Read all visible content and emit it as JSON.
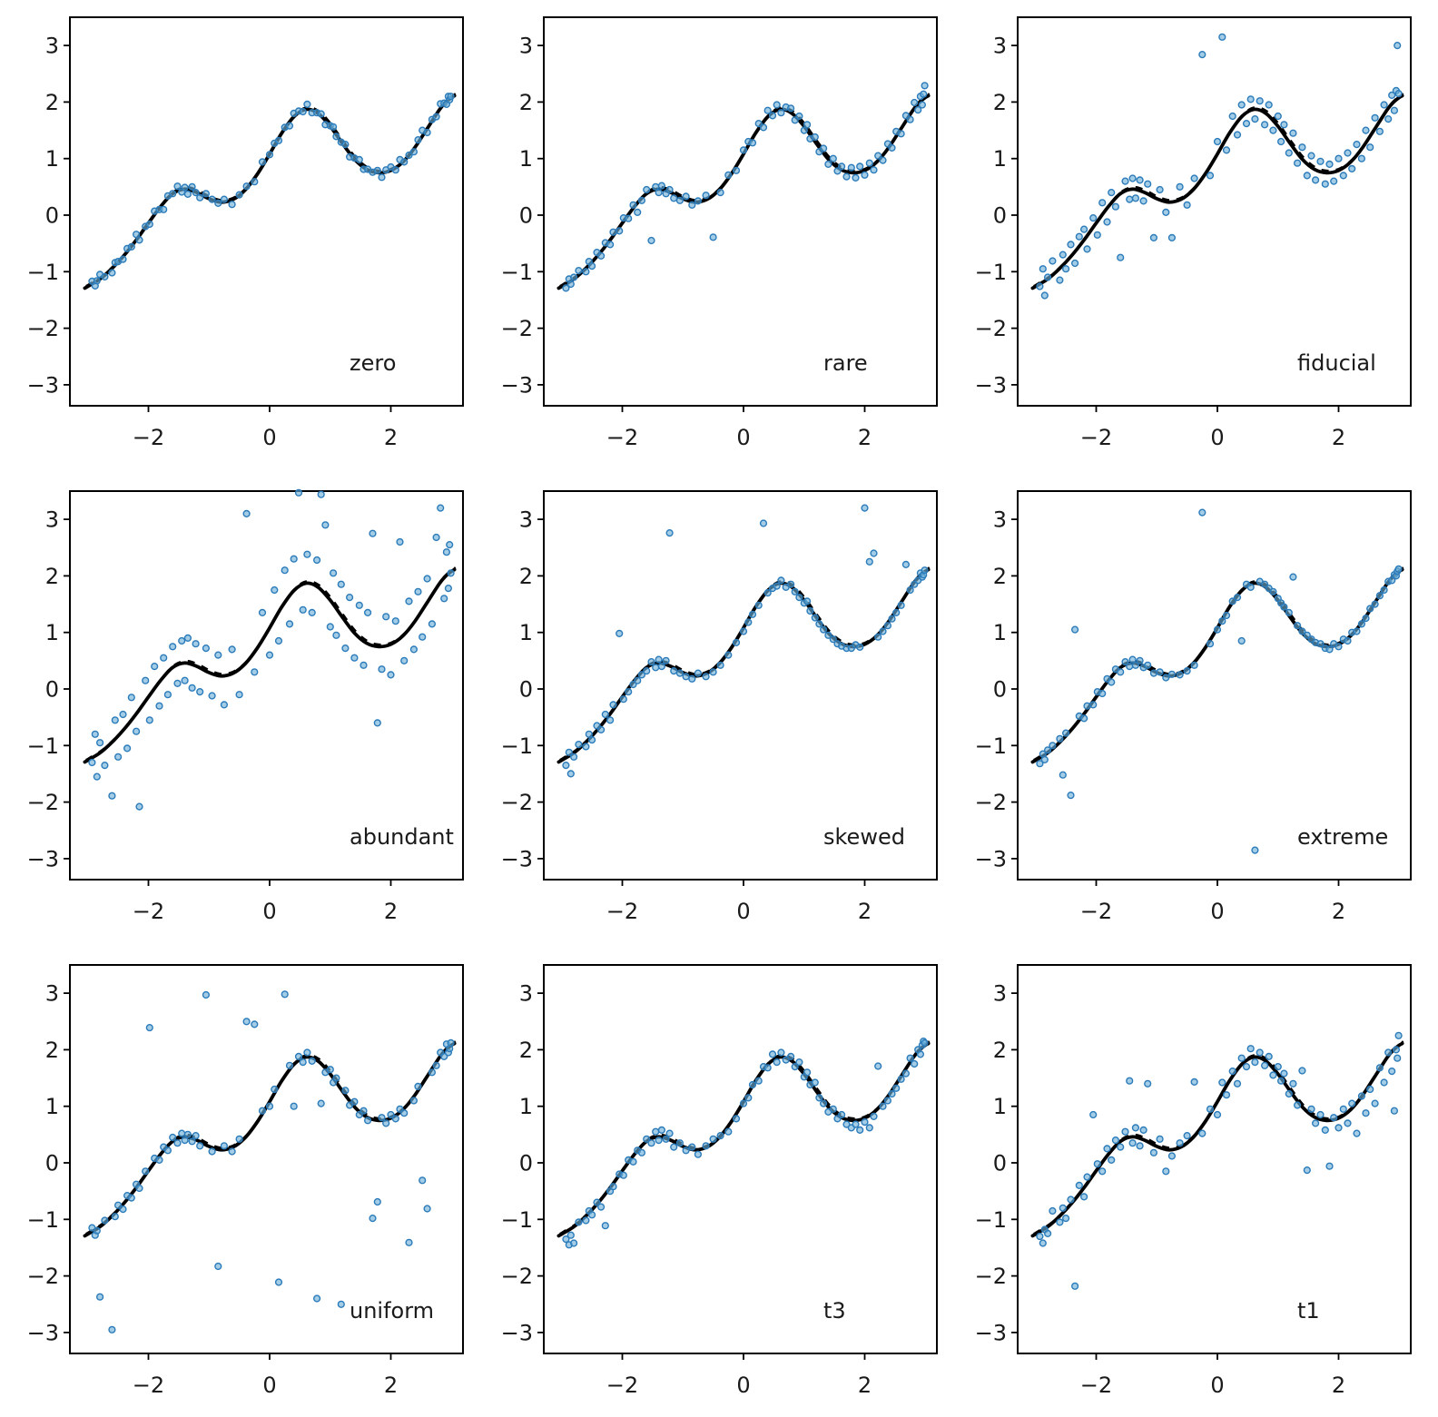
{
  "figure": {
    "background": "#ffffff"
  },
  "chart_data": {
    "type": "scatter",
    "title": "",
    "grid": "3x3 panels, shared true curve",
    "legend": "none",
    "xticks": [
      -2,
      0,
      2
    ],
    "yticks": [
      3,
      2,
      1,
      0,
      -1,
      -2,
      -3
    ],
    "xlim": [
      -3.3,
      3.2
    ],
    "ylim": [
      -3.4,
      3.5
    ],
    "marker_fill": "#6aaed6",
    "marker_edge": "#2b7bba",
    "curve_color": "#000000",
    "curve_styles": [
      "solid-truth",
      "dashed-fit"
    ],
    "true_curve": {
      "x": [
        -3.05,
        -3.0,
        -2.8,
        -2.6,
        -2.4,
        -2.2,
        -2.0,
        -1.8,
        -1.6,
        -1.4,
        -1.2,
        -1.0,
        -0.8,
        -0.6,
        -0.4,
        -0.2,
        0.0,
        0.2,
        0.4,
        0.6,
        0.8,
        1.0,
        1.2,
        1.4,
        1.6,
        1.8,
        2.0,
        2.2,
        2.4,
        2.6,
        2.8,
        2.9,
        3.0,
        3.05
      ],
      "y": [
        -1.29,
        -1.26,
        -1.13,
        -0.94,
        -0.71,
        -0.44,
        -0.14,
        0.15,
        0.38,
        0.46,
        0.4,
        0.29,
        0.23,
        0.28,
        0.45,
        0.73,
        1.08,
        1.45,
        1.74,
        1.87,
        1.8,
        1.57,
        1.27,
        0.99,
        0.81,
        0.75,
        0.79,
        0.94,
        1.2,
        1.53,
        1.86,
        1.99,
        2.08,
        2.11
      ]
    },
    "shared_x": [
      -2.93,
      -2.88,
      -2.85,
      -2.8,
      -2.72,
      -2.6,
      -2.55,
      -2.5,
      -2.42,
      -2.35,
      -2.28,
      -2.2,
      -2.15,
      -2.05,
      -1.98,
      -1.9,
      -1.82,
      -1.75,
      -1.68,
      -1.6,
      -1.52,
      -1.45,
      -1.4,
      -1.35,
      -1.28,
      -1.22,
      -1.15,
      -1.05,
      -0.95,
      -0.85,
      -0.75,
      -0.62,
      -0.5,
      -0.38,
      -0.25,
      -0.12,
      0.0,
      0.08,
      0.15,
      0.25,
      0.33,
      0.4,
      0.48,
      0.55,
      0.62,
      0.7,
      0.78,
      0.85,
      0.92,
      1.0,
      1.05,
      1.1,
      1.18,
      1.25,
      1.32,
      1.4,
      1.48,
      1.55,
      1.62,
      1.7,
      1.78,
      1.85,
      1.92,
      2.0,
      2.08,
      2.15,
      2.22,
      2.3,
      2.38,
      2.45,
      2.52,
      2.6,
      2.68,
      2.75,
      2.82,
      2.88,
      2.92,
      2.95,
      2.97,
      2.99
    ],
    "panels": [
      {
        "label": "zero",
        "y": [
          -1.17,
          -1.25,
          -1.16,
          -1.05,
          -1.09,
          -1.02,
          -0.84,
          -0.82,
          -0.78,
          -0.59,
          -0.56,
          -0.34,
          -0.44,
          -0.2,
          -0.16,
          0.07,
          0.1,
          0.1,
          0.34,
          0.38,
          0.51,
          0.41,
          0.49,
          0.37,
          0.5,
          0.4,
          0.31,
          0.38,
          0.28,
          0.21,
          0.28,
          0.19,
          0.36,
          0.51,
          0.59,
          0.94,
          1.07,
          1.27,
          1.32,
          1.55,
          1.58,
          1.8,
          1.84,
          1.83,
          1.96,
          1.81,
          1.81,
          1.79,
          1.6,
          1.58,
          1.56,
          1.39,
          1.29,
          1.25,
          1.03,
          1.01,
          0.98,
          0.81,
          0.81,
          0.76,
          0.79,
          0.67,
          0.8,
          0.85,
          0.8,
          0.98,
          0.94,
          1.06,
          1.12,
          1.33,
          1.5,
          1.46,
          1.69,
          1.74,
          1.97,
          1.98,
          1.96,
          2.1,
          2.04,
          2.1
        ]
      },
      {
        "label": "rare",
        "y": [
          -1.29,
          -1.13,
          -1.22,
          -1.1,
          -0.98,
          -1.0,
          -0.82,
          -0.9,
          -0.66,
          -0.72,
          -0.49,
          -0.52,
          -0.3,
          -0.28,
          -0.05,
          -0.06,
          0.18,
          0.05,
          0.26,
          0.45,
          -0.45,
          0.5,
          0.4,
          0.52,
          0.38,
          0.45,
          0.3,
          0.26,
          0.33,
          0.18,
          0.25,
          0.35,
          -0.39,
          0.4,
          0.71,
          0.79,
          1.15,
          1.3,
          1.28,
          1.62,
          1.55,
          1.85,
          1.76,
          1.95,
          1.81,
          1.91,
          1.89,
          1.68,
          1.75,
          1.5,
          1.6,
          1.35,
          1.38,
          1.12,
          1.18,
          0.9,
          1.0,
          0.78,
          0.86,
          0.68,
          0.84,
          0.66,
          0.86,
          0.71,
          0.92,
          0.8,
          1.05,
          0.97,
          1.26,
          1.19,
          1.48,
          1.44,
          1.76,
          1.69,
          1.99,
          1.86,
          2.1,
          1.95,
          2.14,
          2.29
        ]
      },
      {
        "label": "fiducial",
        "y": [
          -1.26,
          -0.95,
          -1.42,
          -1.1,
          -0.81,
          -1.15,
          -0.7,
          -0.95,
          -0.52,
          -0.85,
          -0.38,
          -0.25,
          -0.6,
          -0.05,
          -0.35,
          0.22,
          -0.12,
          0.4,
          0.15,
          -0.75,
          0.6,
          0.28,
          0.65,
          0.3,
          0.62,
          0.25,
          0.55,
          -0.4,
          0.45,
          0.05,
          -0.4,
          0.5,
          0.18,
          0.65,
          2.84,
          0.7,
          1.3,
          3.15,
          1.15,
          1.75,
          1.42,
          1.95,
          1.62,
          2.05,
          1.7,
          2.02,
          1.6,
          1.95,
          1.5,
          1.75,
          1.3,
          1.6,
          1.1,
          1.45,
          0.92,
          1.2,
          0.7,
          1.05,
          0.62,
          0.95,
          0.55,
          0.9,
          0.6,
          1.0,
          0.7,
          1.1,
          0.82,
          1.25,
          1.0,
          1.5,
          1.2,
          1.72,
          1.48,
          1.95,
          1.7,
          2.12,
          1.85,
          2.2,
          3.0,
          2.15
        ]
      },
      {
        "label": "abundant",
        "y": [
          -1.3,
          -0.8,
          -1.55,
          -0.95,
          -1.35,
          -1.89,
          -0.55,
          -1.2,
          -0.45,
          -1.05,
          -0.15,
          -0.75,
          -2.08,
          0.15,
          -0.55,
          0.4,
          -0.3,
          0.55,
          -0.1,
          0.75,
          0.1,
          0.85,
          0.15,
          0.9,
          0.02,
          0.8,
          -0.05,
          0.72,
          -0.12,
          0.6,
          -0.28,
          0.7,
          -0.1,
          3.1,
          0.3,
          1.35,
          0.6,
          1.75,
          0.85,
          2.1,
          1.15,
          2.3,
          3.47,
          1.4,
          2.38,
          1.35,
          2.28,
          3.44,
          2.9,
          1.1,
          2.05,
          0.95,
          1.85,
          0.72,
          1.62,
          0.55,
          1.48,
          0.42,
          1.35,
          2.75,
          -0.6,
          0.35,
          1.28,
          0.25,
          1.2,
          2.6,
          0.5,
          1.55,
          0.7,
          1.72,
          0.92,
          1.95,
          1.15,
          2.68,
          3.2,
          1.6,
          2.42,
          1.78,
          2.55,
          2.05
        ]
      },
      {
        "label": "skewed",
        "y": [
          -1.35,
          -1.12,
          -1.5,
          -1.2,
          -0.98,
          -1.02,
          -0.8,
          -0.9,
          -0.65,
          -0.72,
          -0.45,
          -0.55,
          -0.28,
          0.98,
          -0.18,
          -0.05,
          0.08,
          0.15,
          0.25,
          0.32,
          0.48,
          0.38,
          0.52,
          0.4,
          0.5,
          2.76,
          0.32,
          0.28,
          0.22,
          0.18,
          0.28,
          0.22,
          0.3,
          0.42,
          0.6,
          0.82,
          1.02,
          1.18,
          1.32,
          1.48,
          2.93,
          1.7,
          1.78,
          1.82,
          1.92,
          1.8,
          1.85,
          1.72,
          1.62,
          1.52,
          1.55,
          1.38,
          1.26,
          1.15,
          1.05,
          0.95,
          0.88,
          0.8,
          0.76,
          0.72,
          0.72,
          0.78,
          0.74,
          3.2,
          2.25,
          2.4,
          0.92,
          1.02,
          1.12,
          1.24,
          1.35,
          1.48,
          2.2,
          1.75,
          1.85,
          1.92,
          2.05,
          1.98,
          2.02,
          2.1
        ]
      },
      {
        "label": "extreme",
        "y": [
          -1.32,
          -1.15,
          -1.25,
          -1.08,
          -1.0,
          -0.88,
          -1.52,
          -0.78,
          -1.88,
          1.05,
          -0.48,
          -0.52,
          -0.3,
          -0.28,
          -0.05,
          -0.08,
          0.18,
          0.12,
          0.35,
          0.3,
          0.48,
          0.4,
          0.52,
          0.42,
          0.5,
          0.38,
          0.42,
          0.28,
          0.3,
          0.2,
          0.26,
          0.25,
          0.32,
          0.42,
          3.12,
          0.8,
          1.05,
          1.2,
          1.3,
          1.55,
          1.62,
          0.85,
          1.85,
          1.8,
          -2.85,
          1.9,
          1.85,
          1.78,
          1.72,
          1.6,
          1.52,
          1.45,
          1.35,
          1.98,
          1.12,
          1.02,
          0.95,
          0.88,
          0.82,
          0.8,
          0.72,
          0.7,
          0.8,
          0.75,
          0.88,
          0.85,
          1.0,
          1.02,
          1.15,
          1.25,
          1.42,
          1.5,
          1.65,
          1.75,
          1.9,
          1.92,
          2.02,
          2.0,
          2.08,
          2.12
        ]
      },
      {
        "label": "uniform",
        "y": [
          -1.15,
          -1.28,
          -1.2,
          -2.37,
          -1.02,
          -2.95,
          -0.95,
          -0.75,
          -0.82,
          -0.58,
          -0.62,
          -0.38,
          -0.45,
          -0.15,
          2.39,
          0.08,
          0.05,
          0.28,
          0.22,
          0.45,
          0.35,
          0.52,
          0.4,
          0.5,
          0.38,
          0.48,
          0.3,
          2.97,
          0.2,
          -1.83,
          0.3,
          0.2,
          0.42,
          2.5,
          2.45,
          0.92,
          1.0,
          1.3,
          -2.11,
          2.98,
          1.72,
          1.0,
          1.88,
          1.78,
          1.95,
          1.8,
          -2.4,
          1.05,
          1.6,
          1.65,
          1.42,
          1.5,
          -2.5,
          1.28,
          1.02,
          1.08,
          0.85,
          0.92,
          0.75,
          -0.98,
          -0.69,
          0.8,
          0.7,
          0.85,
          0.78,
          0.95,
          0.88,
          -1.41,
          1.1,
          1.35,
          -0.31,
          -0.81,
          1.6,
          1.72,
          1.95,
          1.88,
          2.1,
          1.95,
          2.02,
          2.12
        ]
      },
      {
        "label": "t3",
        "y": [
          -1.35,
          -1.45,
          -1.28,
          -1.42,
          -1.05,
          -1.02,
          -0.85,
          -0.92,
          -0.7,
          -0.78,
          -1.11,
          -0.5,
          -0.42,
          -0.2,
          -0.22,
          0.05,
          0.02,
          0.22,
          0.18,
          0.42,
          0.35,
          0.55,
          0.4,
          0.58,
          0.42,
          0.52,
          0.28,
          0.35,
          0.22,
          0.28,
          0.15,
          0.3,
          0.42,
          0.48,
          0.55,
          0.78,
          1.05,
          1.15,
          1.38,
          1.45,
          1.7,
          1.68,
          1.92,
          1.78,
          1.95,
          1.82,
          1.88,
          1.7,
          1.78,
          1.52,
          1.6,
          1.38,
          1.42,
          1.15,
          1.05,
          0.9,
          0.95,
          0.78,
          0.85,
          0.68,
          0.62,
          0.68,
          0.58,
          0.72,
          0.62,
          0.82,
          1.71,
          1.0,
          1.1,
          1.22,
          1.32,
          1.48,
          1.58,
          1.85,
          1.75,
          2.0,
          1.92,
          2.08,
          2.15,
          2.12
        ]
      },
      {
        "label": "t1",
        "y": [
          -1.3,
          -1.42,
          -1.18,
          -1.25,
          -0.85,
          -1.05,
          -0.8,
          -0.98,
          -0.65,
          -2.18,
          -0.4,
          -0.6,
          -0.25,
          0.85,
          -0.02,
          -0.15,
          0.25,
          0.05,
          0.4,
          0.28,
          0.55,
          1.45,
          0.35,
          0.62,
          0.3,
          0.58,
          1.4,
          0.18,
          0.42,
          -0.15,
          0.12,
          0.35,
          0.48,
          1.43,
          0.52,
          0.95,
          0.85,
          1.42,
          1.2,
          1.62,
          1.4,
          1.85,
          1.7,
          2.02,
          1.78,
          1.95,
          1.72,
          1.88,
          1.55,
          1.7,
          1.45,
          1.58,
          1.22,
          1.4,
          1.02,
          1.63,
          -0.13,
          0.95,
          0.7,
          0.85,
          0.58,
          -0.06,
          0.8,
          0.62,
          0.95,
          0.7,
          1.05,
          0.52,
          1.18,
          0.88,
          1.3,
          1.05,
          1.68,
          1.42,
          1.95,
          1.62,
          0.92,
          2.0,
          1.85,
          2.25
        ]
      }
    ]
  }
}
